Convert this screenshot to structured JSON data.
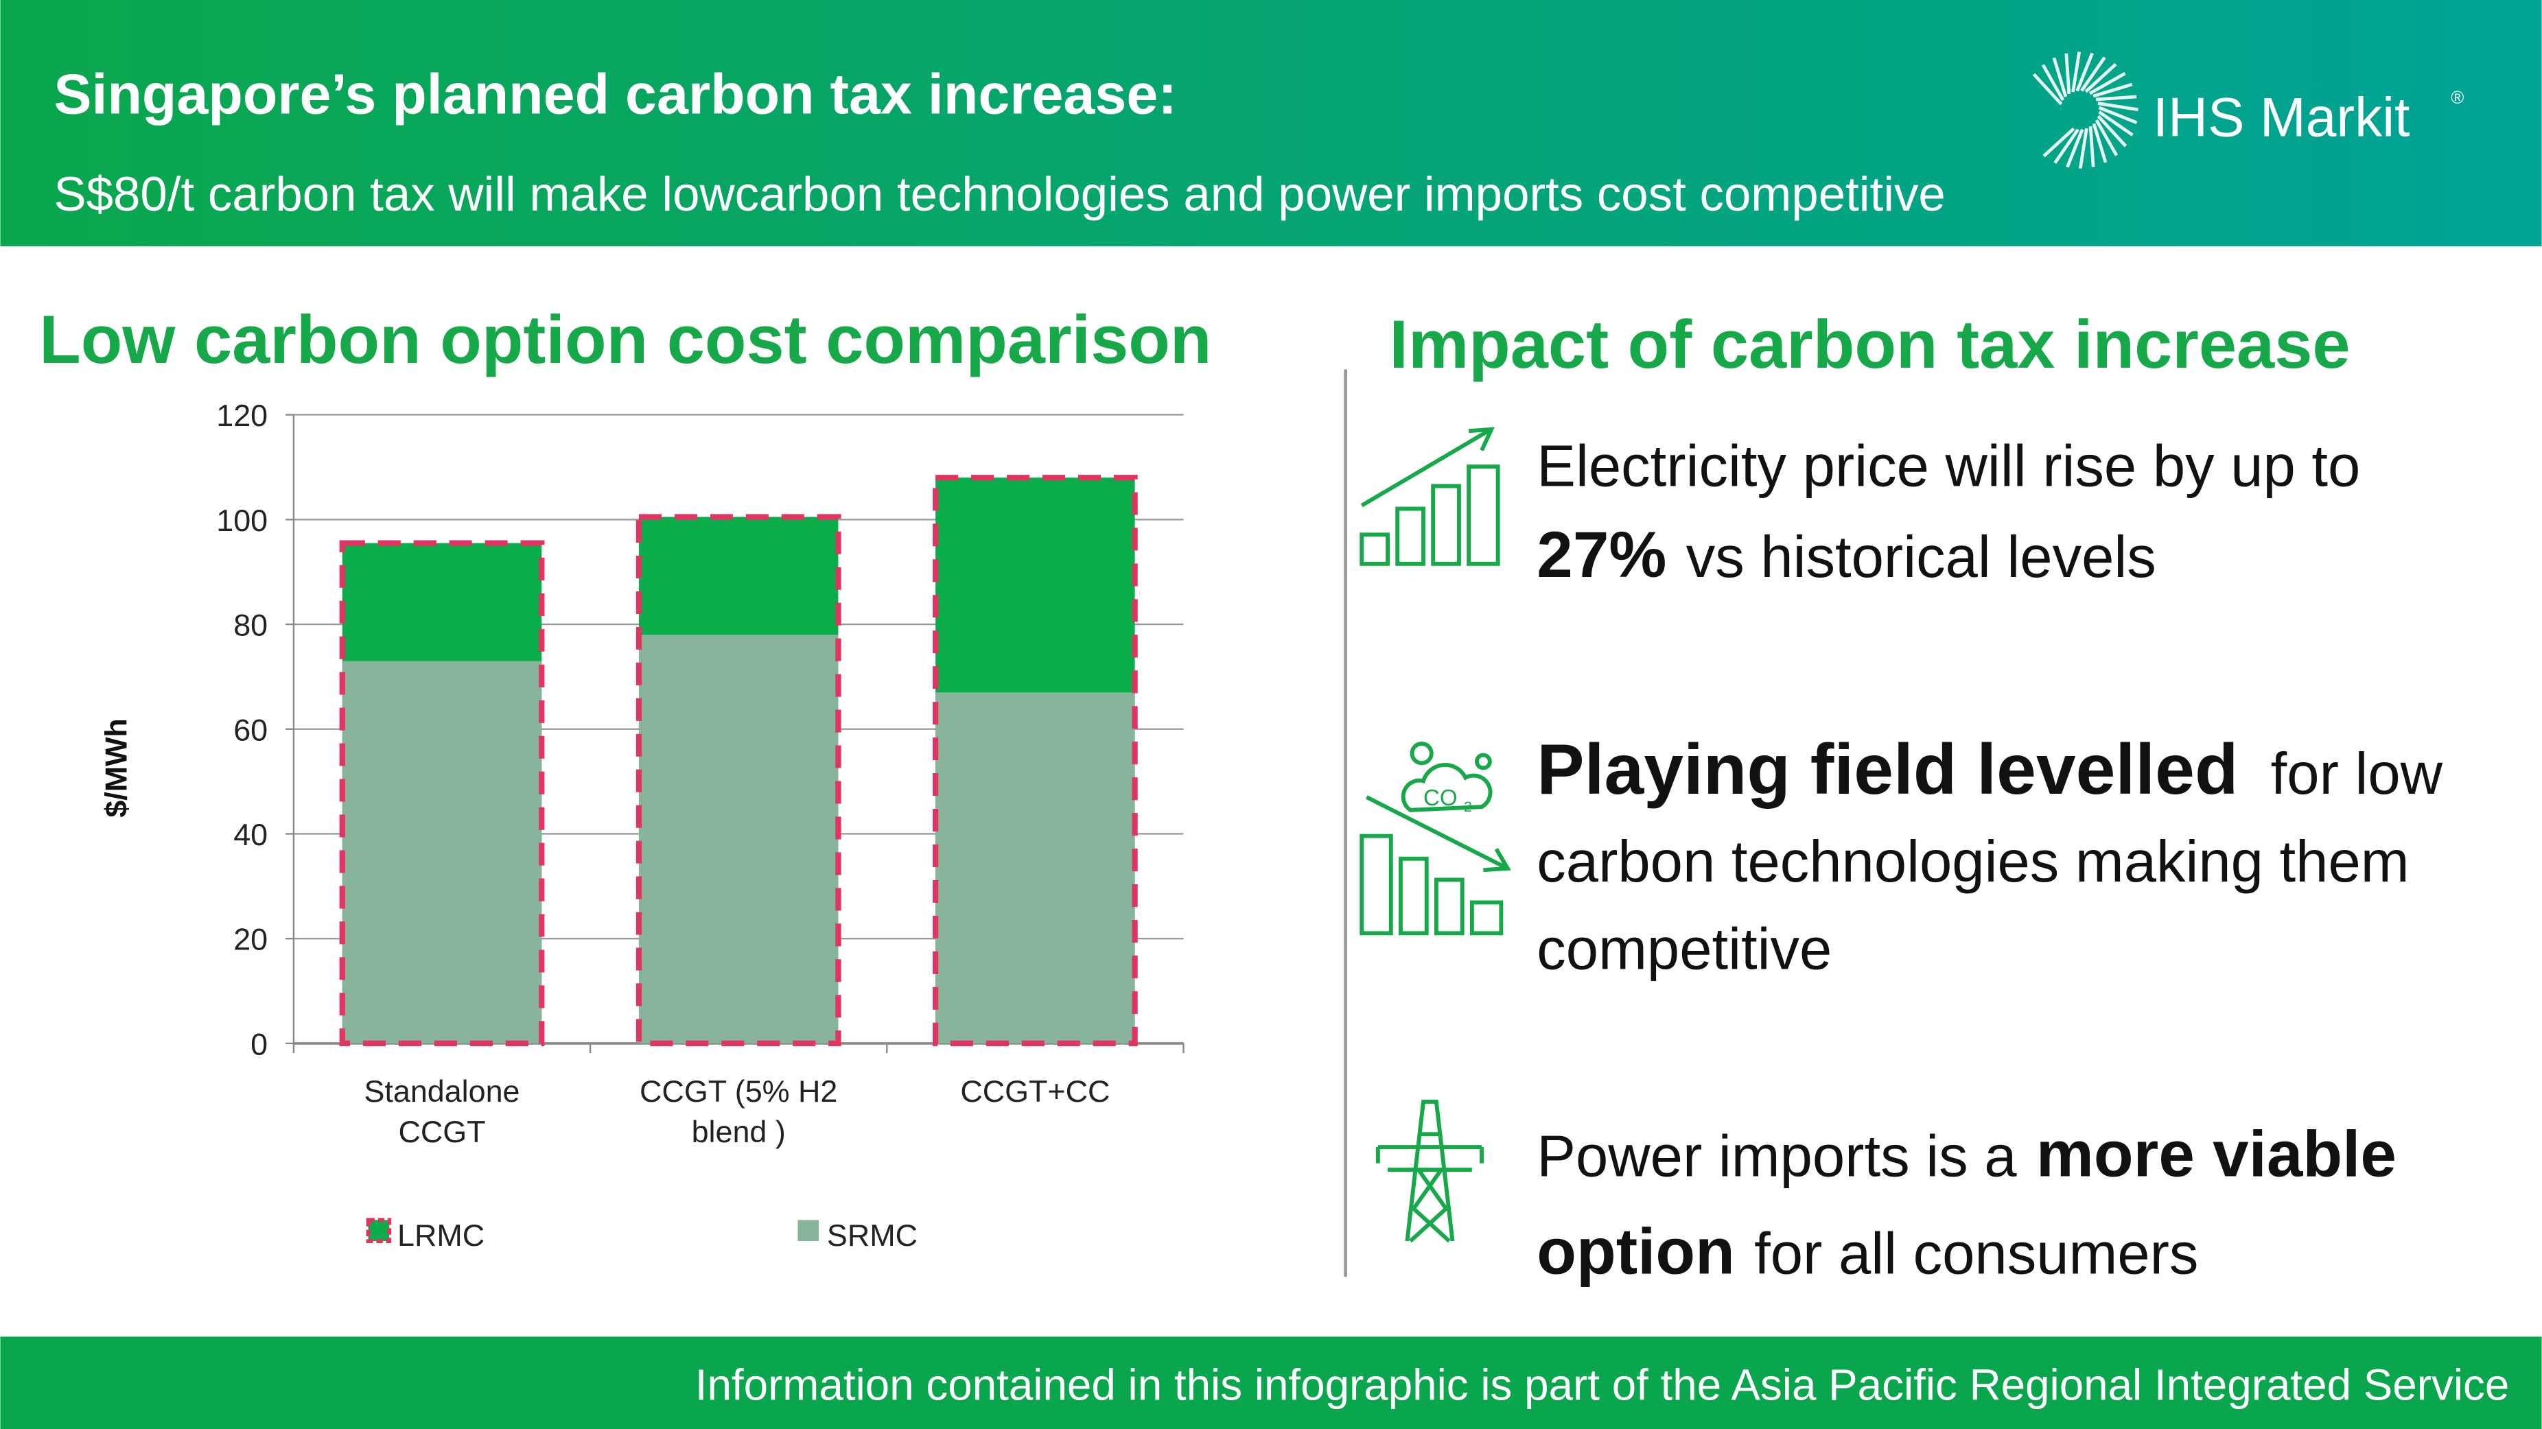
{
  "header": {
    "title": "Singapore’s planned carbon tax increase:",
    "subtitle": "S$80/t carbon tax will make lowcarbon technologies and power imports cost competitive",
    "logo": "IHS Markit",
    "logo_mark": "®"
  },
  "chart_data": {
    "type": "bar",
    "title": "Low carbon option cost comparison",
    "y_label": "$/MWh",
    "categories": [
      [
        "Standalone",
        "CCGT"
      ],
      [
        "CCGT (5% H2",
        "blend )"
      ],
      [
        "CCGT+CC"
      ]
    ],
    "series": [
      {
        "name": "LRMC",
        "color": "#0aad4a",
        "outline": "#e03560",
        "values": [
          95.5,
          100.5,
          108
        ]
      },
      {
        "name": "SRMC",
        "color": "#88b49c",
        "values": [
          73,
          78,
          67
        ]
      }
    ],
    "ylim": [
      0,
      120
    ],
    "yticks": [
      0,
      20,
      40,
      60,
      80,
      100,
      120
    ],
    "grid": true
  },
  "impact": {
    "title": "Impact of carbon tax increase",
    "items": [
      {
        "lines": [
          [
            {
              "text": "Electricity price will rise by up to",
              "bold": false
            }
          ],
          [
            {
              "text": "27%",
              "bold": true
            },
            {
              "text": "vs historical levels",
              "bold": false
            }
          ]
        ]
      },
      {
        "lines": [
          [
            {
              "text": "Playing field levelled",
              "bold": true
            },
            {
              "text": "for low",
              "bold": false
            }
          ],
          [
            {
              "text": "carbon technologies making them",
              "bold": false
            }
          ],
          [
            {
              "text": "competitive",
              "bold": false
            }
          ]
        ]
      },
      {
        "lines": [
          [
            {
              "text": "Power imports is a",
              "bold": false
            },
            {
              "text": "more viable",
              "bold": true
            }
          ],
          [
            {
              "text": "option",
              "bold": true
            },
            {
              "text": "for all consumers",
              "bold": false
            }
          ]
        ]
      }
    ]
  },
  "footer": {
    "text": "Information contained in this infographic is part of the Asia Pacific Regional Integrated Service"
  }
}
